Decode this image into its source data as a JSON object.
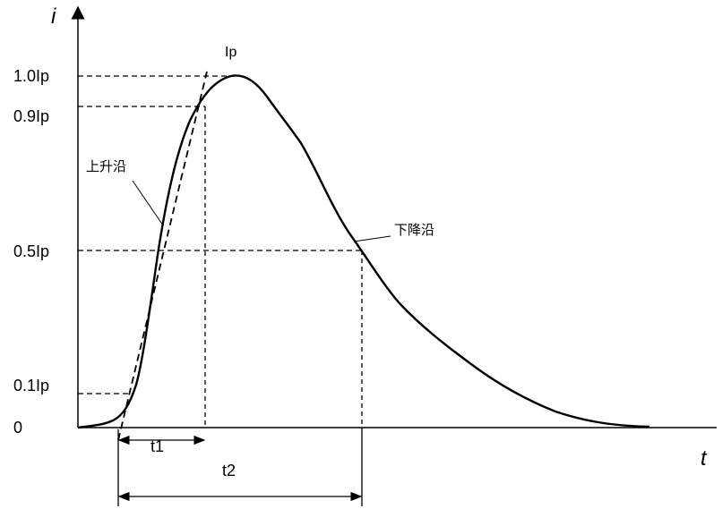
{
  "axes": {
    "y_label": "i",
    "x_label": "t"
  },
  "levels": [
    {
      "label": "1.0Ip"
    },
    {
      "label": "0.9Ip"
    },
    {
      "label": "0.5Ip"
    },
    {
      "label": "0.1Ip"
    },
    {
      "label": "0"
    }
  ],
  "annotations": {
    "peak": "Ip",
    "rising_edge": "上升沿",
    "falling_edge": "下降沿",
    "t1": "t1",
    "t2": "t2"
  }
}
